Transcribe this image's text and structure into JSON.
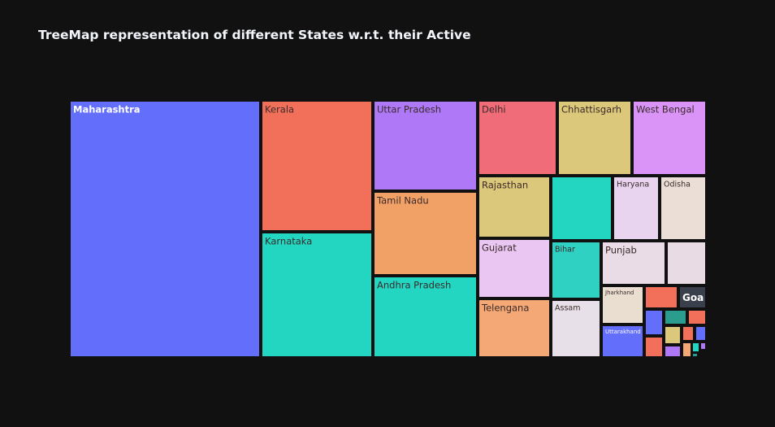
{
  "chart_data": {
    "type": "treemap",
    "title": "TreeMap representation of different States w.r.t. their Active",
    "background": "#111111",
    "tiles": [
      {
        "name": "Maharashtra",
        "color": "#636efa",
        "label_color": "#ffffff",
        "bold": true
      },
      {
        "name": "Kerala",
        "color": "#f27059",
        "label_color": "#3a2a2a"
      },
      {
        "name": "Karnataka",
        "color": "#22d6c1",
        "label_color": "#3a2a2a"
      },
      {
        "name": "Uttar Pradesh",
        "color": "#ae78f7",
        "label_color": "#3a2a2a"
      },
      {
        "name": "Tamil Nadu",
        "color": "#f1a066",
        "label_color": "#3a2a2a"
      },
      {
        "name": "Andhra Pradesh",
        "color": "#22d6c1",
        "label_color": "#3a2a2a"
      },
      {
        "name": "Delhi",
        "color": "#ef6c78",
        "label_color": "#3a2a2a"
      },
      {
        "name": "Chhattisgarh",
        "color": "#dcc87a",
        "label_color": "#3a2a2a"
      },
      {
        "name": "West Bengal",
        "color": "#da93f6",
        "label_color": "#3a2a2a"
      },
      {
        "name": "Rajasthan",
        "color": "#dcc87a",
        "label_color": "#3a2a2a"
      },
      {
        "name": "Gujarat",
        "color": "#eac6f3",
        "label_color": "#3a2a2a"
      },
      {
        "name": "Telengana",
        "color": "#f4a875",
        "label_color": "#3a2a2a"
      },
      {
        "name": "",
        "color": "#22d6c1",
        "label_color": "#3a2a2a"
      },
      {
        "name": "Haryana",
        "color": "#e8d4ee",
        "label_color": "#3a2a2a"
      },
      {
        "name": "Odisha",
        "color": "#eaded6",
        "label_color": "#3a2a2a"
      },
      {
        "name": "Bihar",
        "color": "#2ed1c2",
        "label_color": "#3a2a2a"
      },
      {
        "name": "Punjab",
        "color": "#e9dce6",
        "label_color": "#3a2a2a"
      },
      {
        "name": "",
        "color": "#e8dbe4",
        "label_color": "#3a2a2a"
      },
      {
        "name": "Assam",
        "color": "#e8e0e8",
        "label_color": "#3a2a2a"
      },
      {
        "name": "Jharkhand",
        "color": "#eaded0",
        "label_color": "#3a2a2a"
      },
      {
        "name": "",
        "color": "#f27059",
        "label_color": "#3a2a2a"
      },
      {
        "name": "Goa",
        "color": "#3a3f4c",
        "label_color": "#ffffff",
        "bold": true
      },
      {
        "name": "Uttarakhand",
        "color": "#636efa",
        "label_color": "#ffffff"
      },
      {
        "name": "",
        "color": "#636efa",
        "label_color": "#3a2a2a"
      },
      {
        "name": "",
        "color": "#2a9d8f",
        "label_color": "#3a2a2a"
      },
      {
        "name": "",
        "color": "#f27059",
        "label_color": "#3a2a2a"
      },
      {
        "name": "",
        "color": "#dcc87a",
        "label_color": "#3a2a2a"
      },
      {
        "name": "",
        "color": "#f27059",
        "label_color": "#3a2a2a"
      },
      {
        "name": "",
        "color": "#636efa",
        "label_color": "#3a2a2a"
      },
      {
        "name": "",
        "color": "#f27059",
        "label_color": "#3a2a2a"
      },
      {
        "name": "",
        "color": "#ae78f7",
        "label_color": "#3a2a2a"
      },
      {
        "name": "",
        "color": "#f4a875",
        "label_color": "#3a2a2a"
      },
      {
        "name": "",
        "color": "#22d6c1",
        "label_color": "#3a2a2a"
      },
      {
        "name": "",
        "color": "#ae78f7",
        "label_color": "#3a2a2a"
      },
      {
        "name": "",
        "color": "#2a9d8f",
        "label_color": "#3a2a2a"
      }
    ]
  }
}
